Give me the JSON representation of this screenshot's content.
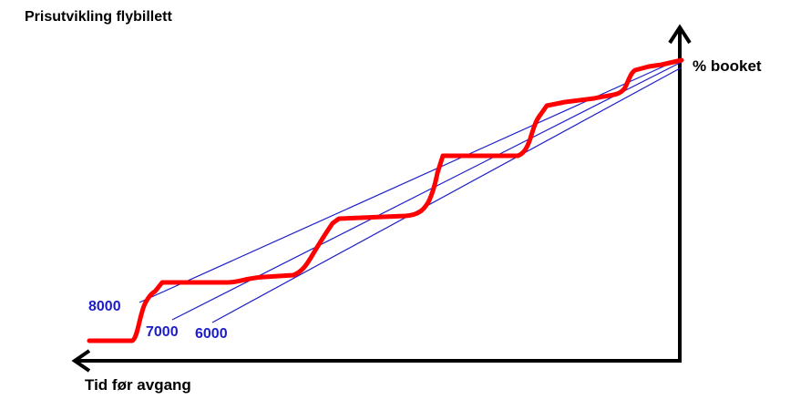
{
  "title": "Prisutvikling flybillett",
  "y_axis_label": "% booket",
  "x_axis_label": "Tid før avgang",
  "reference_lines": [
    {
      "label": "8000"
    },
    {
      "label": "7000"
    },
    {
      "label": "6000"
    }
  ],
  "colors": {
    "price_curve": "#ff0000",
    "reference_lines": "#1d1dc8",
    "axes": "#000000"
  }
}
